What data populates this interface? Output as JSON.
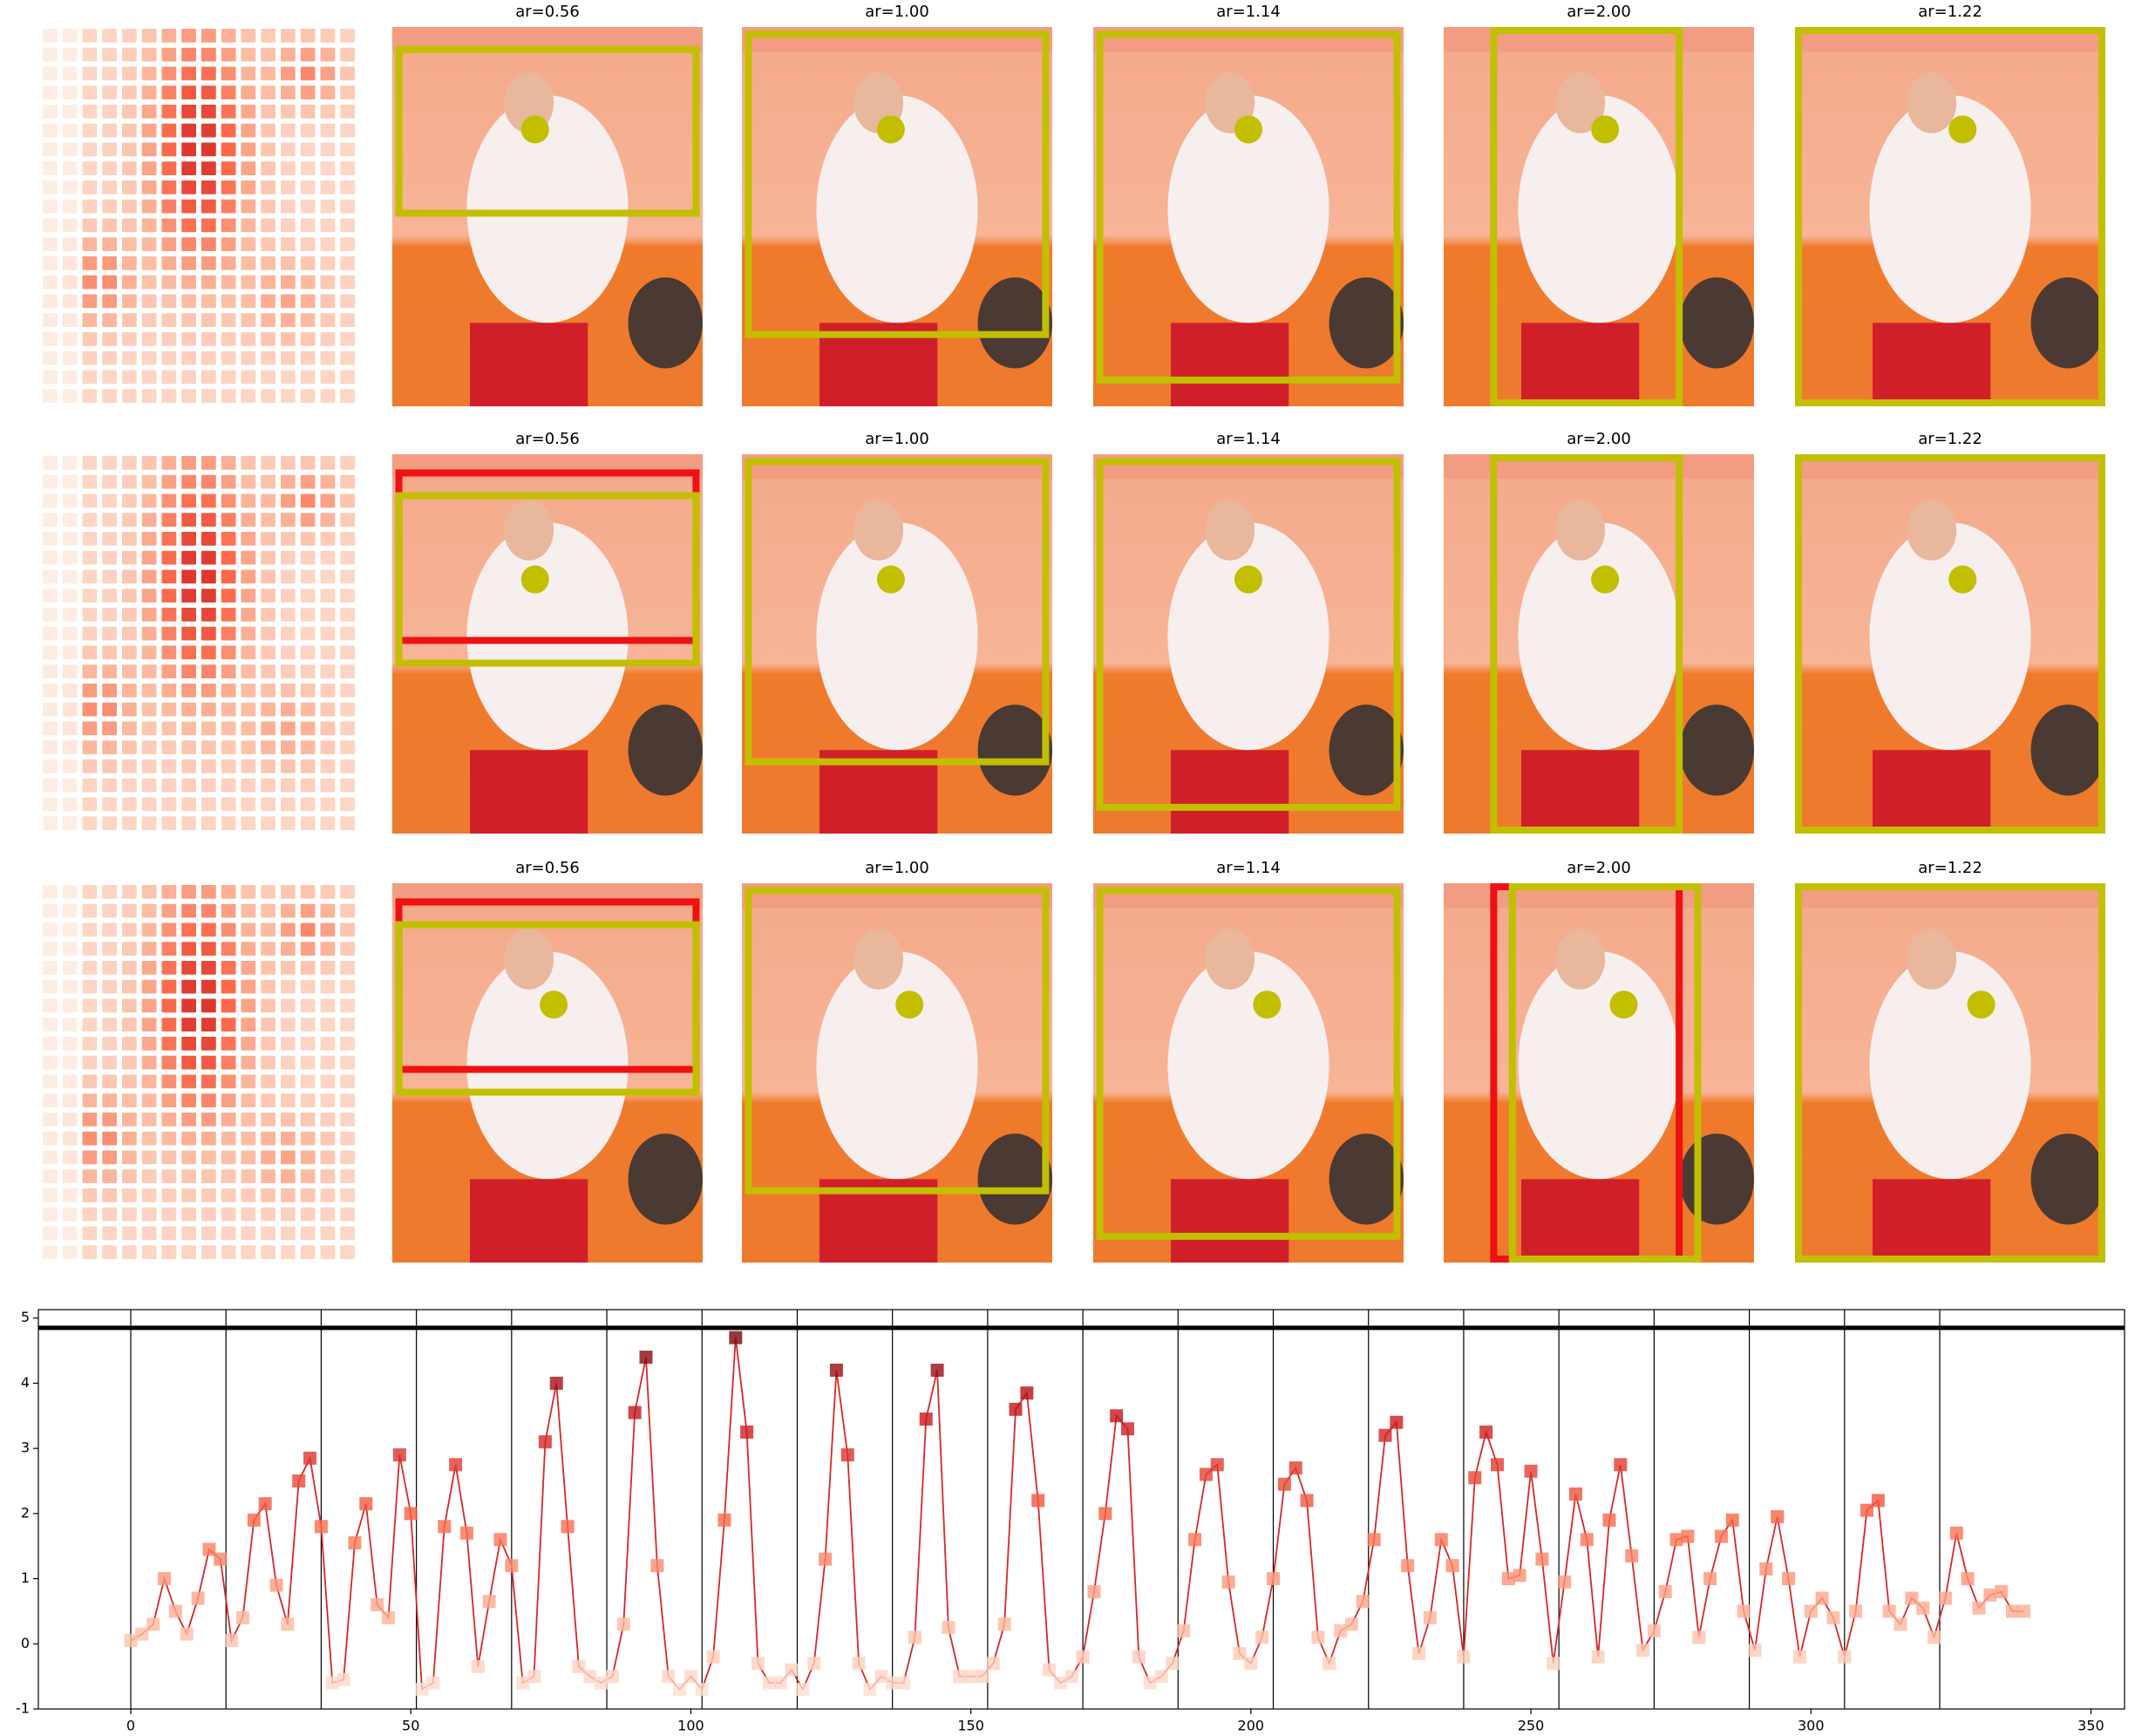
{
  "panel_rows": [
    {
      "titles": [
        "ar=0.56",
        "ar=1.00",
        "ar=1.14",
        "ar=2.00",
        "ar=1.22"
      ]
    },
    {
      "titles": [
        "ar=0.56",
        "ar=1.00",
        "ar=1.14",
        "ar=2.00",
        "ar=1.22"
      ]
    },
    {
      "titles": [
        "ar=0.56",
        "ar=1.00",
        "ar=1.14",
        "ar=2.00",
        "ar=1.22"
      ]
    }
  ],
  "chart_data": {
    "type": "line",
    "color": "#d62728",
    "marker_cmap": "Reds",
    "xlim": [
      -16.5,
      356
    ],
    "ylim": [
      -1,
      5.13
    ],
    "xticks": [
      0,
      50,
      100,
      150,
      200,
      250,
      300,
      350
    ],
    "yticks": [
      -1,
      0,
      1,
      2,
      3,
      4,
      5
    ],
    "hline": 4.85,
    "vlines": [
      0,
      17,
      34,
      51,
      68,
      85,
      102,
      119,
      136,
      153,
      170,
      187,
      204,
      221,
      238,
      255,
      272,
      289,
      306,
      323
    ],
    "x": [
      0,
      2,
      4,
      6,
      8,
      10,
      12,
      14,
      16,
      18,
      20,
      22,
      24,
      26,
      28,
      30,
      32,
      34,
      36,
      38,
      40,
      42,
      44,
      46,
      48,
      50,
      52,
      54,
      56,
      58,
      60,
      62,
      64,
      66,
      68,
      70,
      72,
      74,
      76,
      78,
      80,
      82,
      84,
      86,
      88,
      90,
      92,
      94,
      96,
      98,
      100,
      102,
      104,
      106,
      108,
      110,
      112,
      114,
      116,
      118,
      120,
      122,
      124,
      126,
      128,
      130,
      132,
      134,
      136,
      138,
      140,
      142,
      144,
      146,
      148,
      150,
      152,
      154,
      156,
      158,
      160,
      162,
      164,
      166,
      168,
      170,
      172,
      174,
      176,
      178,
      180,
      182,
      184,
      186,
      188,
      190,
      192,
      194,
      196,
      198,
      200,
      202,
      204,
      206,
      208,
      210,
      212,
      214,
      216,
      218,
      220,
      222,
      224,
      226,
      228,
      230,
      232,
      234,
      236,
      238,
      240,
      242,
      244,
      246,
      248,
      250,
      252,
      254,
      256,
      258,
      260,
      262,
      264,
      266,
      268,
      270,
      272,
      274,
      276,
      278,
      280,
      282,
      284,
      286,
      288,
      290,
      292,
      294,
      296,
      298,
      300,
      302,
      304,
      306,
      308,
      310,
      312,
      314,
      316,
      318,
      320,
      322,
      324,
      326,
      328,
      330,
      332,
      334,
      336,
      338
    ],
    "values": [
      0.05,
      0.15,
      0.3,
      1.0,
      0.5,
      0.15,
      0.7,
      1.45,
      1.3,
      0.05,
      0.4,
      1.9,
      2.15,
      0.9,
      0.3,
      2.5,
      2.85,
      1.8,
      -0.6,
      -0.55,
      1.55,
      2.15,
      0.6,
      0.4,
      2.9,
      2.0,
      -0.7,
      -0.6,
      1.8,
      2.75,
      1.7,
      -0.35,
      0.65,
      1.6,
      1.2,
      -0.6,
      -0.5,
      3.1,
      4.0,
      1.8,
      -0.35,
      -0.5,
      -0.6,
      -0.5,
      0.3,
      3.55,
      4.4,
      1.2,
      -0.5,
      -0.7,
      -0.5,
      -0.7,
      -0.2,
      1.9,
      4.7,
      3.25,
      -0.3,
      -0.6,
      -0.6,
      -0.4,
      -0.7,
      -0.3,
      1.3,
      4.2,
      2.9,
      -0.3,
      -0.7,
      -0.5,
      -0.6,
      -0.6,
      0.1,
      3.45,
      4.2,
      0.25,
      -0.5,
      -0.5,
      -0.5,
      -0.3,
      0.3,
      3.6,
      3.85,
      2.2,
      -0.4,
      -0.6,
      -0.5,
      -0.2,
      0.8,
      2.0,
      3.5,
      3.3,
      -0.2,
      -0.6,
      -0.5,
      -0.3,
      0.2,
      1.6,
      2.6,
      2.75,
      0.95,
      -0.15,
      -0.3,
      0.1,
      1.0,
      2.45,
      2.7,
      2.2,
      0.1,
      -0.3,
      0.2,
      0.3,
      0.65,
      1.6,
      3.2,
      3.4,
      1.2,
      -0.15,
      0.4,
      1.6,
      1.2,
      -0.2,
      2.55,
      3.25,
      2.75,
      1.0,
      1.05,
      2.65,
      1.3,
      -0.3,
      0.95,
      2.3,
      1.6,
      -0.2,
      1.9,
      2.75,
      1.35,
      -0.1,
      0.2,
      0.8,
      1.6,
      1.65,
      0.1,
      1.0,
      1.65,
      1.9,
      0.5,
      -0.1,
      1.15,
      1.95,
      1.0,
      -0.2,
      0.5,
      0.7,
      0.4,
      -0.2,
      0.5,
      2.05,
      2.2,
      0.5,
      0.3,
      0.7,
      0.55,
      0.1,
      0.7,
      1.7,
      1.0,
      0.55,
      0.75,
      0.8,
      0.5,
      0.5
    ]
  }
}
